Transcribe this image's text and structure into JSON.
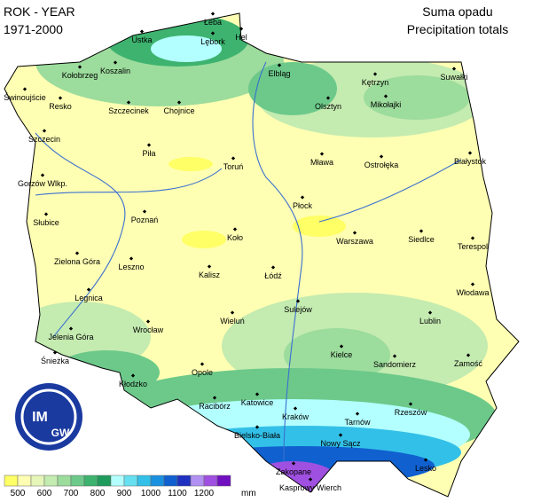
{
  "header": {
    "left_1": "ROK - YEAR",
    "left_2": "1971-2000",
    "right_1": "Suma opadu",
    "right_2": "Precipitation totals"
  },
  "cities": [
    "Hel",
    "Łeba",
    "Ustka",
    "Lębork",
    "Koszalin",
    "Kołobrzeg",
    "Elbląg",
    "Suwałki",
    "Świnoujście",
    "Resko",
    "Szczecinek",
    "Chojnice",
    "Olsztyn",
    "Kętrzyn",
    "Mikołajki",
    "Szczecin",
    "Piła",
    "Toruń",
    "Mława",
    "Ostrołęka",
    "Białystok",
    "Gorzów Wlkp.",
    "Płock",
    "Słubice",
    "Poznań",
    "Koło",
    "Warszawa",
    "Siedlce",
    "Terespol",
    "Zielona Góra",
    "Leszno",
    "Kalisz",
    "Łódź",
    "Włodawa",
    "Sulejów",
    "Legnica",
    "Wieluń",
    "Wrocław",
    "Lublin",
    "Jelenia Góra",
    "Śnieżka",
    "Kłodzko",
    "Opole",
    "Kielce",
    "Sandomierz",
    "Zamość",
    "Racibórz",
    "Katowice",
    "Kraków",
    "Tarnów",
    "Rzeszów",
    "Bielsko-Biała",
    "Nowy Sącz",
    "Lesko",
    "Zakopane",
    "Kasprowy Wierch"
  ],
  "legend": {
    "colors": [
      "#ffff66",
      "#ffffb3",
      "#e6f5b8",
      "#c4ebb0",
      "#9cdc9c",
      "#6cc98a",
      "#3db36f",
      "#1f9c5c",
      "#b3ffff",
      "#66e0f0",
      "#33c0e8",
      "#1a90e0",
      "#1060d0",
      "#2030c0",
      "#b090f0",
      "#a050e0",
      "#7010c0"
    ],
    "ticks": [
      500,
      600,
      700,
      800,
      900,
      1000,
      1100,
      1200
    ],
    "unit": "mm"
  },
  "logo": [
    "IM",
    "GW"
  ]
}
